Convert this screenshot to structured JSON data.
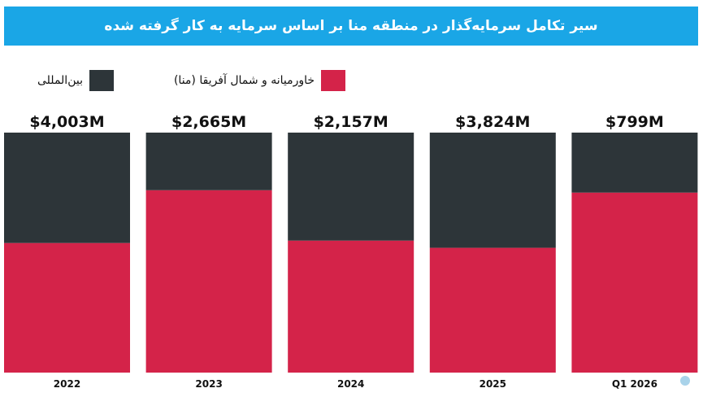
{
  "chart_data": {
    "type": "bar",
    "stacked": "percent",
    "title": "سیر تکامل سرمایه‌گذار در منطقه منا بر اساس سرمایه به کار گرفته شده",
    "categories": [
      "2022",
      "2023",
      "2024",
      "2025",
      "Q1 2026"
    ],
    "totals": [
      "$4,003M",
      "$2,665M",
      "$2,157M",
      "$3,824M",
      "$799M"
    ],
    "series": [
      {
        "name": "خاورمیانه و شمال آفریقا (منا)",
        "color": "#d42349",
        "values": [
          54,
          76,
          55,
          52,
          75
        ]
      },
      {
        "name": "بین‌المللی",
        "color": "#2d3539",
        "values": [
          46,
          24,
          45,
          48,
          25
        ]
      }
    ],
    "ylim": [
      0,
      100
    ],
    "grid": false,
    "legend": "top-left"
  }
}
